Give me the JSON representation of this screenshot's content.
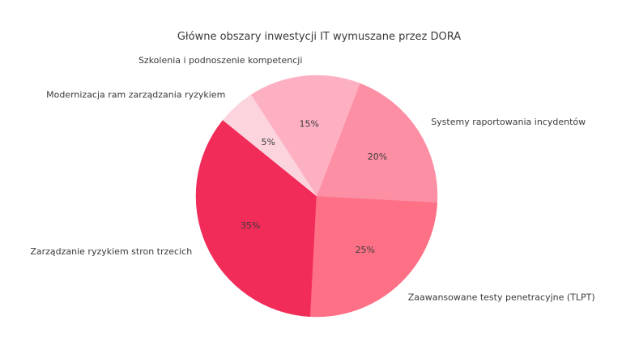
{
  "chart_data": {
    "type": "pie",
    "title": "Główne obszary inwestycji IT wymuszane przez DORA",
    "legend": false,
    "background": "#FFFFFF",
    "text_color": "#3A3A3A",
    "start_angle_deg": 141,
    "direction": "counterclockwise",
    "slices": [
      {
        "label": "Zarządzanie ryzykiem stron trzecich",
        "value": 35,
        "pct_label": "35%",
        "color": "#F22C59"
      },
      {
        "label": "Zaawansowane testy penetracyjne (TLPT)",
        "value": 25,
        "pct_label": "25%",
        "color": "#FD7086"
      },
      {
        "label": "Systemy raportowania incydentów",
        "value": 20,
        "pct_label": "20%",
        "color": "#FC8FA3"
      },
      {
        "label": "Szkolenia i podnoszenie kompetencji",
        "value": 15,
        "pct_label": "15%",
        "color": "#FEB0C3"
      },
      {
        "label": "Modernizacja ram zarządzania ryzykiem",
        "value": 5,
        "pct_label": "5%",
        "color": "#FCD4DE"
      }
    ]
  }
}
